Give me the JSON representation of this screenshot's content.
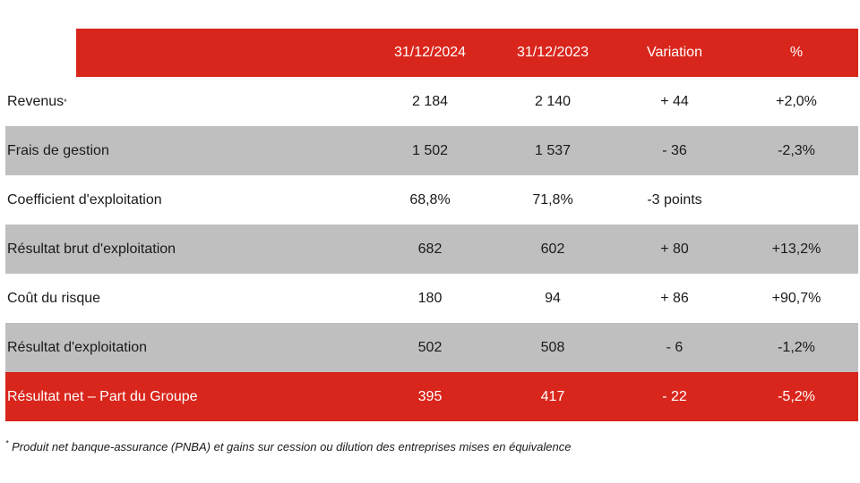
{
  "header": {
    "col1": "31/12/2024",
    "col2": "31/12/2023",
    "col3": "Variation",
    "col4": "%"
  },
  "rows": [
    {
      "label": "Revenus",
      "marker": "*",
      "v2024": "2 184",
      "v2023": "2 140",
      "variation": "+ 44",
      "pct": "+2,0%"
    },
    {
      "label": "Frais de gestion",
      "v2024": "1 502",
      "v2023": "1 537",
      "variation": "- 36",
      "pct": "-2,3%"
    },
    {
      "label": "Coefficient d'exploitation",
      "v2024": "68,8%",
      "v2023": "71,8%",
      "variation": "-3 points",
      "pct": ""
    },
    {
      "label": "Résultat brut d'exploitation",
      "v2024": "682",
      "v2023": "602",
      "variation": "+ 80",
      "pct": "+13,2%"
    },
    {
      "label": "Coût du risque",
      "v2024": "180",
      "v2023": "94",
      "variation": "+ 86",
      "pct": "+90,7%"
    },
    {
      "label": "Résultat d'exploitation",
      "v2024": "502",
      "v2023": "508",
      "variation": "- 6",
      "pct": "-1,2%"
    },
    {
      "label": "Résultat net – Part du Groupe",
      "v2024": "395",
      "v2023": "417",
      "variation": "- 22",
      "pct": "-5,2%"
    }
  ],
  "footnote": {
    "marker": "*",
    "text": " Produit net banque-assurance (PNBA) et gains sur cession ou dilution des entreprises mises en équivalence"
  },
  "colors": {
    "accent_red": "#d9261c",
    "row_gray": "#bfbfbf"
  }
}
